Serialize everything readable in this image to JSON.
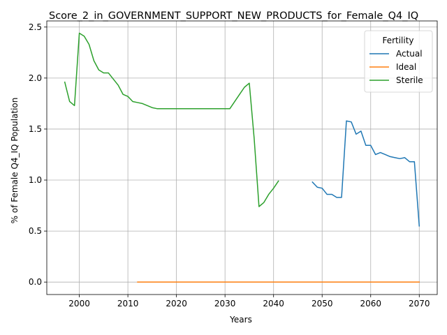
{
  "chart_data": {
    "type": "line",
    "title": "Score_2_in_GOVERNMENT_SUPPORT_NEW_PRODUCTS_for_Female_Q4_IQ",
    "xlabel": "Years",
    "ylabel": "% of Female Q4_IQ Population",
    "xlim": [
      1993.3,
      2073.7
    ],
    "ylim": [
      -0.122,
      2.56
    ],
    "xticks": [
      2000,
      2010,
      2020,
      2030,
      2040,
      2050,
      2060,
      2070
    ],
    "yticks": [
      0.0,
      0.5,
      1.0,
      1.5,
      2.0,
      2.5
    ],
    "xtick_labels": [
      "2000",
      "2010",
      "2020",
      "2030",
      "2040",
      "2050",
      "2060",
      "2070"
    ],
    "ytick_labels": [
      "0.0",
      "0.5",
      "1.0",
      "1.5",
      "2.0",
      "2.5"
    ],
    "grid": true,
    "legend": {
      "title": "Fertility",
      "placement": "top-right"
    },
    "series": [
      {
        "name": "Actual",
        "color": "#1f77b4",
        "x": [
          2048,
          2049,
          2050,
          2051,
          2052,
          2053,
          2054,
          2055,
          2056,
          2057,
          2058,
          2059,
          2060,
          2061,
          2062,
          2063,
          2064,
          2065,
          2066,
          2067,
          2068,
          2069,
          2070
        ],
        "y": [
          0.98,
          0.93,
          0.92,
          0.86,
          0.86,
          0.83,
          0.83,
          1.58,
          1.57,
          1.45,
          1.48,
          1.34,
          1.34,
          1.25,
          1.27,
          1.25,
          1.23,
          1.22,
          1.21,
          1.22,
          1.18,
          1.18,
          0.55
        ]
      },
      {
        "name": "Ideal",
        "color": "#ff7f0e",
        "x": [
          2012,
          2070
        ],
        "y": [
          0.0,
          0.0
        ]
      },
      {
        "name": "Sterile",
        "color": "#2ca02c",
        "x": [
          1997,
          1998,
          1999,
          2000,
          2001,
          2002,
          2003,
          2004,
          2005,
          2006,
          2007,
          2008,
          2009,
          2010,
          2011,
          2012,
          2013,
          2014,
          2015,
          2016,
          2017,
          2018,
          2019,
          2020,
          2021,
          2022,
          2023,
          2024,
          2025,
          2026,
          2027,
          2028,
          2029,
          2030,
          2031,
          2032,
          2033,
          2034,
          2035,
          2036,
          2037,
          2038,
          2039,
          2040,
          2041
        ],
        "y": [
          1.96,
          1.77,
          1.73,
          2.44,
          2.41,
          2.33,
          2.17,
          2.08,
          2.05,
          2.05,
          1.99,
          1.93,
          1.84,
          1.82,
          1.77,
          1.76,
          1.75,
          1.73,
          1.71,
          1.7,
          1.7,
          1.7,
          1.7,
          1.7,
          1.7,
          1.7,
          1.7,
          1.7,
          1.7,
          1.7,
          1.7,
          1.7,
          1.7,
          1.7,
          1.7,
          1.77,
          1.84,
          1.91,
          1.95,
          1.41,
          0.74,
          0.78,
          0.86,
          0.92,
          0.99
        ]
      }
    ]
  }
}
